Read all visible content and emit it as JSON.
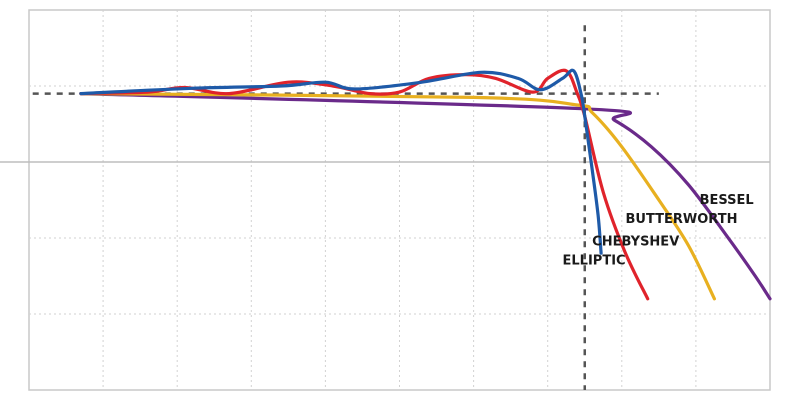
{
  "chart_data": {
    "type": "line",
    "title": "",
    "xlabel": "",
    "ylabel": "",
    "xlim": [
      0,
      10
    ],
    "ylim": [
      0,
      5
    ],
    "grid": true,
    "reference_lines": {
      "cutoff_x": 7.5,
      "passband_y": 3.9
    },
    "series": [
      {
        "name": "BESSEL",
        "color": "#6a2a8a",
        "points": [
          [
            0.7,
            3.9
          ],
          [
            7.5,
            3.7
          ],
          [
            7.9,
            3.55
          ],
          [
            8.4,
            3.2
          ],
          [
            8.9,
            2.7
          ],
          [
            9.4,
            2.05
          ],
          [
            9.8,
            1.5
          ],
          [
            10.0,
            1.2
          ]
        ]
      },
      {
        "name": "BUTTERWORTH",
        "color": "#e8b020",
        "points": [
          [
            0.7,
            3.9
          ],
          [
            6.0,
            3.85
          ],
          [
            7.4,
            3.75
          ],
          [
            7.6,
            3.65
          ],
          [
            8.0,
            3.2
          ],
          [
            8.5,
            2.5
          ],
          [
            8.9,
            1.9
          ],
          [
            9.25,
            1.2
          ]
        ]
      },
      {
        "name": "CHEBYSHEV",
        "color": "#e0232b",
        "points": [
          [
            0.7,
            3.9
          ],
          [
            1.6,
            3.92
          ],
          [
            2.1,
            3.98
          ],
          [
            2.7,
            3.9
          ],
          [
            3.5,
            4.05
          ],
          [
            4.1,
            4.0
          ],
          [
            4.6,
            3.9
          ],
          [
            5.0,
            3.92
          ],
          [
            5.4,
            4.1
          ],
          [
            5.9,
            4.15
          ],
          [
            6.3,
            4.1
          ],
          [
            6.8,
            3.92
          ],
          [
            7.0,
            4.1
          ],
          [
            7.25,
            4.2
          ],
          [
            7.4,
            3.9
          ],
          [
            7.5,
            3.6
          ],
          [
            7.75,
            2.6
          ],
          [
            8.05,
            1.8
          ],
          [
            8.35,
            1.2
          ]
        ]
      },
      {
        "name": "ELLIPTIC",
        "color": "#1e5aa8",
        "points": [
          [
            0.7,
            3.9
          ],
          [
            2.2,
            3.97
          ],
          [
            3.4,
            4.0
          ],
          [
            4.0,
            4.05
          ],
          [
            4.4,
            3.96
          ],
          [
            5.3,
            4.05
          ],
          [
            6.1,
            4.18
          ],
          [
            6.6,
            4.1
          ],
          [
            6.9,
            3.95
          ],
          [
            7.2,
            4.1
          ],
          [
            7.35,
            4.2
          ],
          [
            7.45,
            3.9
          ],
          [
            7.5,
            3.6
          ],
          [
            7.6,
            2.9
          ],
          [
            7.68,
            2.3
          ],
          [
            7.72,
            1.8
          ]
        ]
      }
    ],
    "annotations": [
      {
        "text": "BESSEL",
        "x": 9.05,
        "y": 2.45
      },
      {
        "text": "BUTTERWORTH",
        "x": 8.05,
        "y": 2.2
      },
      {
        "text": "CHEBYSHEV",
        "x": 7.6,
        "y": 1.9
      },
      {
        "text": "ELLIPTIC",
        "x": 7.2,
        "y": 1.65
      }
    ]
  }
}
